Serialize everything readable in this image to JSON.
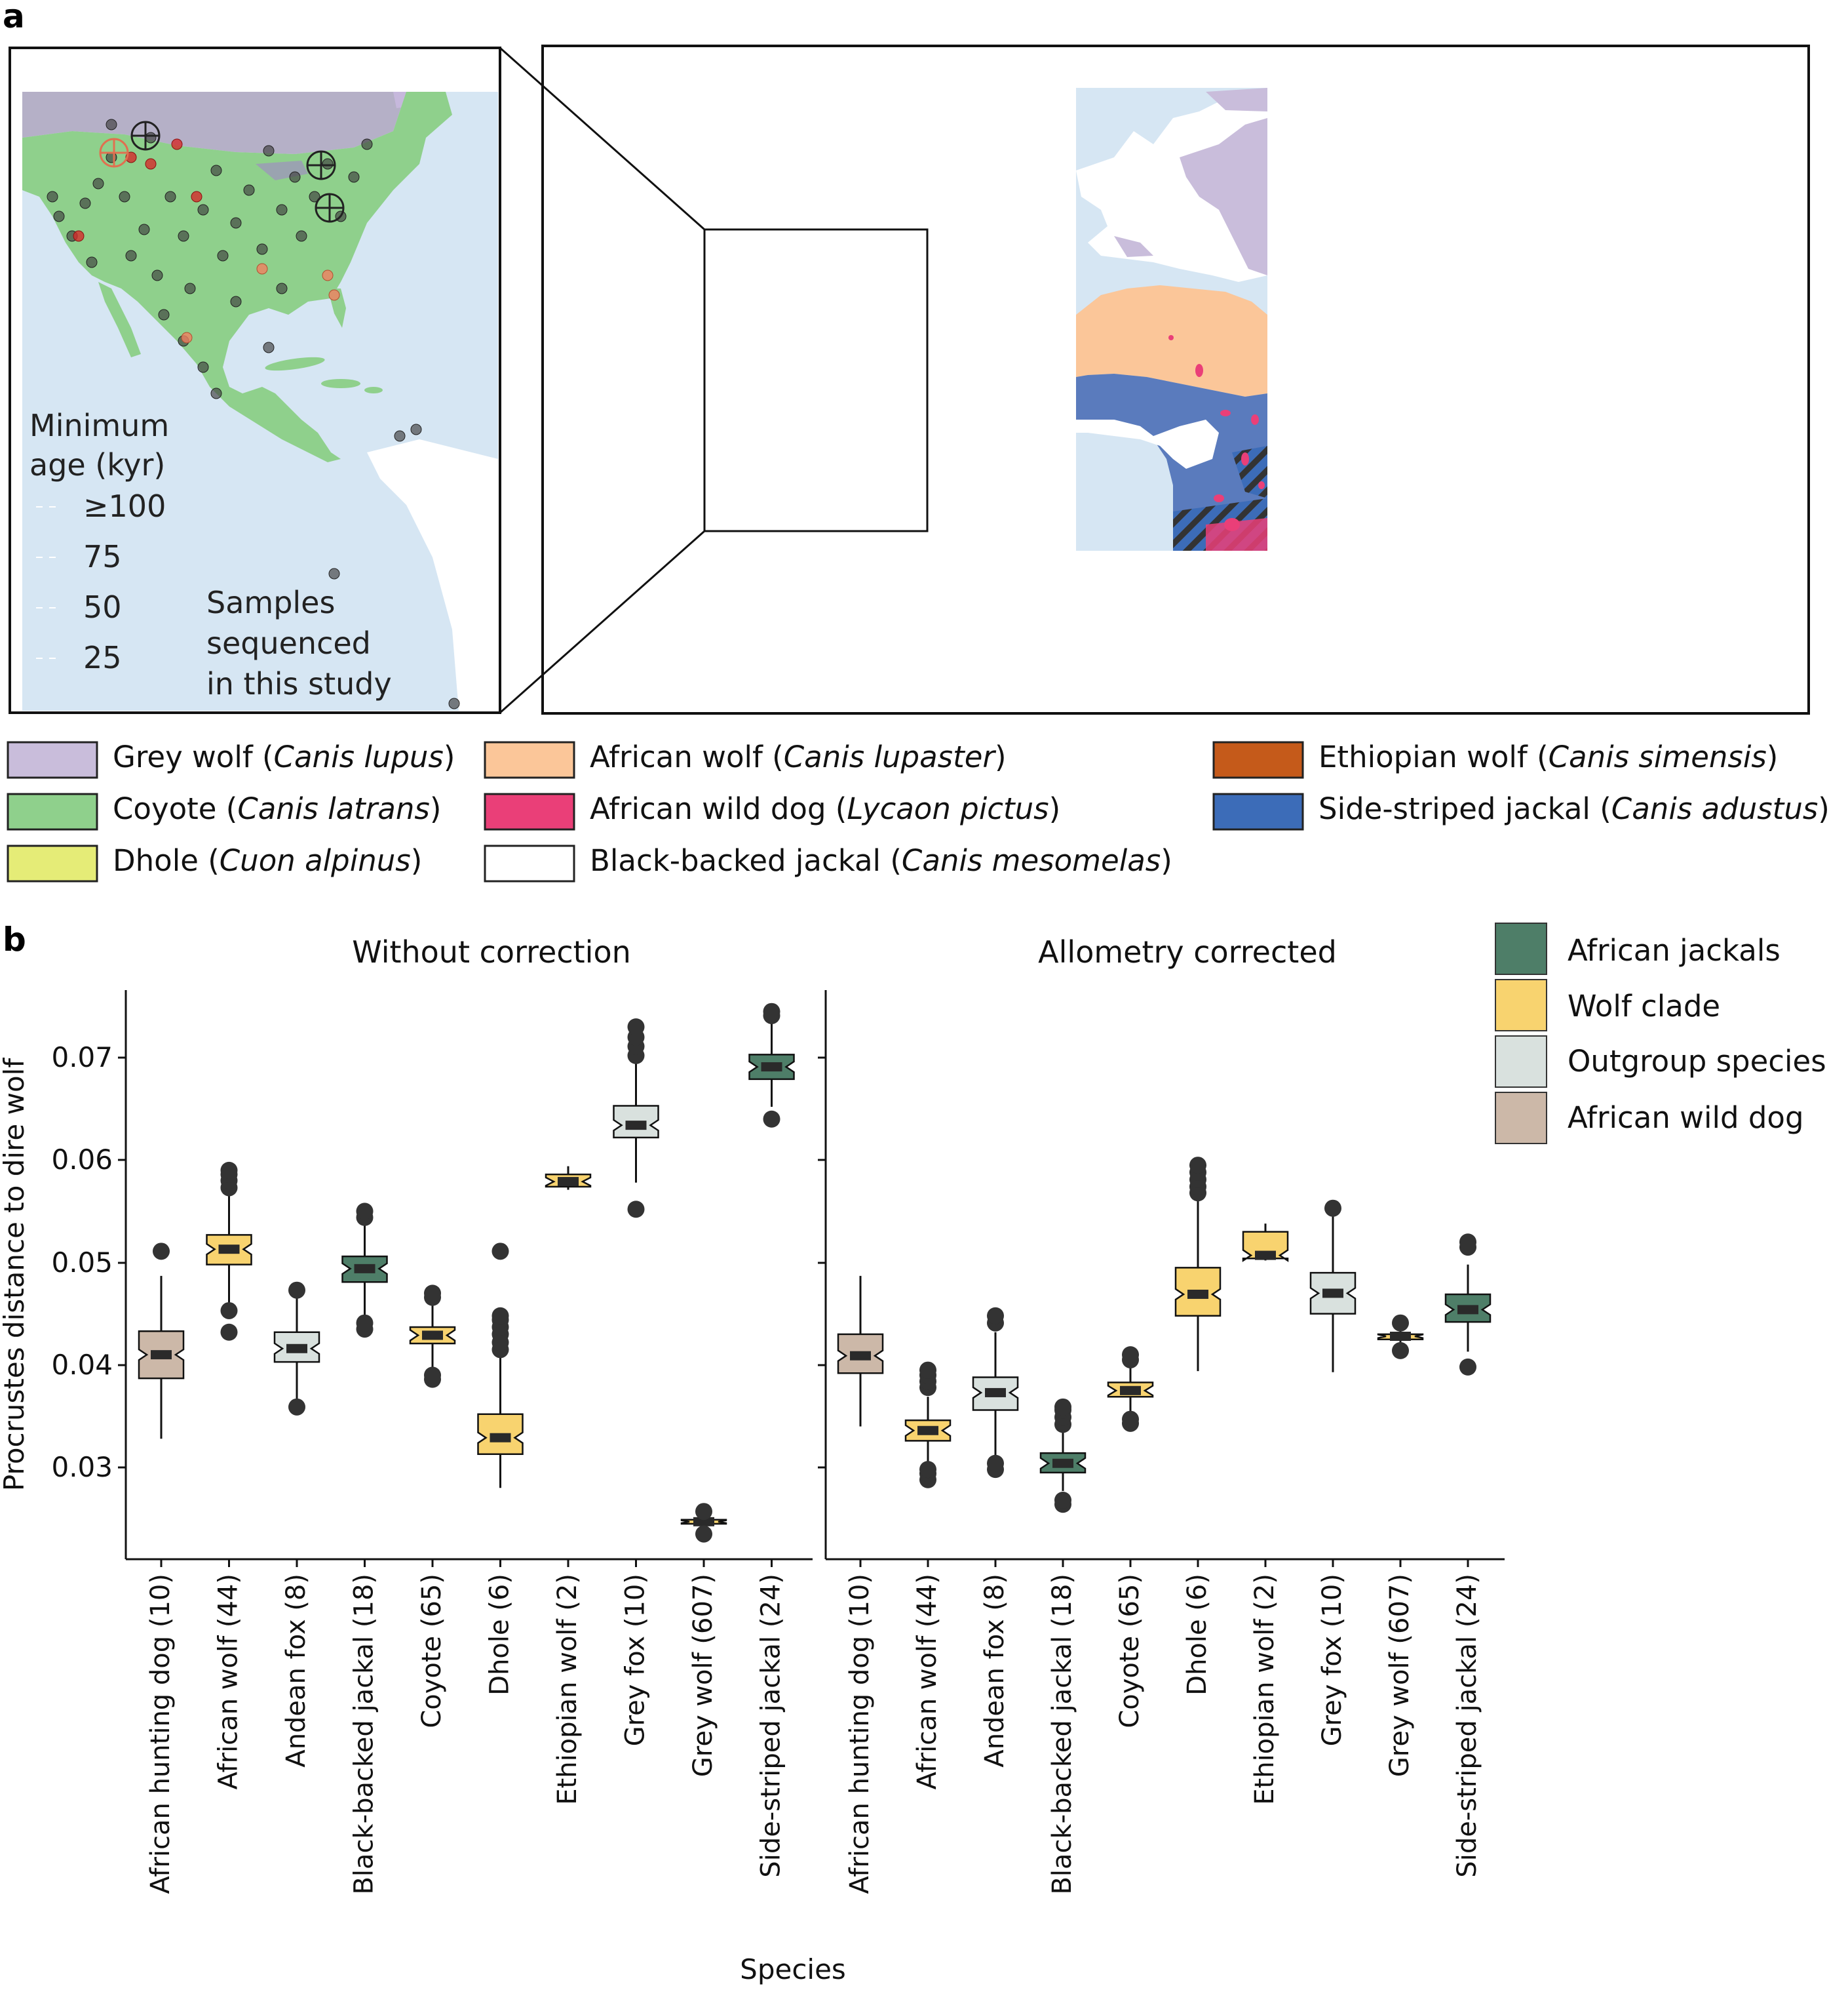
{
  "panel_a": {
    "letter": "a",
    "inset": {
      "legend_title_line1": "Minimum",
      "legend_title_line2": "age (kyr)",
      "age_ticks": [
        "≥100",
        "75",
        "50",
        "25"
      ],
      "samples_line1": "Samples",
      "samples_line2": "sequenced",
      "samples_line3": "in this study"
    },
    "species_legend": [
      {
        "common": "Grey wolf (",
        "latin": "Canis lupus",
        "close": ")",
        "color": "#c9bddb"
      },
      {
        "common": "Coyote (",
        "latin": "Canis latrans",
        "close": ")",
        "color": "#8fd08c"
      },
      {
        "common": "Dhole (",
        "latin": "Cuon alpinus",
        "close": ")",
        "color": "#e5ec77"
      },
      {
        "common": "African wolf (",
        "latin": "Canis lupaster",
        "close": ")",
        "color": "#fbc699"
      },
      {
        "common": "African wild dog (",
        "latin": "Lycaon pictus",
        "close": ")",
        "color": "#ea3f78"
      },
      {
        "common": "Black-backed jackal (",
        "latin": "Canis mesomelas",
        "close": ")",
        "color": "#ffffff"
      },
      {
        "common": "Ethiopian wolf (",
        "latin": "Canis simensis",
        "close": ")",
        "color": "#c55a1a"
      },
      {
        "common": "Side-striped jackal (",
        "latin": "Canis adustus",
        "close": ")",
        "color": "#3c6cb8"
      }
    ]
  },
  "panel_b": {
    "letter": "b",
    "ylabel": "Procrustes distance to dire wolf",
    "xlabel": "Species",
    "y_ticks": [
      "0.03",
      "0.04",
      "0.05",
      "0.06",
      "0.07"
    ],
    "facet_titles": [
      "Without correction",
      "Allometry corrected"
    ],
    "legend": [
      {
        "label": "African jackals",
        "color": "#4e7e68"
      },
      {
        "label": "Wolf clade",
        "color": "#f8d36f"
      },
      {
        "label": "Outgroup species",
        "color": "#d9e1de"
      },
      {
        "label": "African wild dog",
        "color": "#ccb8a8"
      }
    ]
  },
  "chart_data": [
    {
      "type": "box",
      "title": "Without correction",
      "xlabel": "Species",
      "ylabel": "Procrustes distance to dire wolf",
      "ylim": [
        0.0215,
        0.0775
      ],
      "categories": [
        "African hunting dog (10)",
        "African wolf (44)",
        "Andean fox (8)",
        "Black-backed jackal (18)",
        "Coyote (65)",
        "Dhole (6)",
        "Ethiopian wolf (2)",
        "Grey fox (10)",
        "Grey wolf (607)",
        "Side-striped jackal (24)"
      ],
      "groups": [
        "African wild dog",
        "Wolf clade",
        "Outgroup species",
        "African jackals",
        "Wolf clade",
        "Wolf clade",
        "Wolf clade",
        "Outgroup species",
        "Wolf clade",
        "African jackals"
      ],
      "boxes": [
        {
          "min": 0.0328,
          "q1": 0.0387,
          "median": 0.041,
          "q3": 0.0433,
          "max": 0.0487,
          "outliers": [
            0.0511
          ]
        },
        {
          "min": 0.0457,
          "q1": 0.0498,
          "median": 0.0513,
          "q3": 0.0527,
          "max": 0.0567,
          "outliers": [
            0.0432,
            0.0453,
            0.0573,
            0.058,
            0.0586,
            0.059
          ]
        },
        {
          "min": 0.0365,
          "q1": 0.0403,
          "median": 0.0416,
          "q3": 0.0432,
          "max": 0.0465,
          "outliers": [
            0.0359,
            0.0473
          ]
        },
        {
          "min": 0.0444,
          "q1": 0.0481,
          "median": 0.0494,
          "q3": 0.0506,
          "max": 0.054,
          "outliers": [
            0.0435,
            0.0441,
            0.0544,
            0.055
          ]
        },
        {
          "min": 0.0393,
          "q1": 0.0421,
          "median": 0.0429,
          "q3": 0.0437,
          "max": 0.0462,
          "outliers": [
            0.0386,
            0.039,
            0.0466,
            0.047
          ]
        },
        {
          "min": 0.028,
          "q1": 0.0313,
          "median": 0.0329,
          "q3": 0.0352,
          "max": 0.0408,
          "outliers": [
            0.0415,
            0.0422,
            0.043,
            0.0437,
            0.0444,
            0.0448,
            0.0511
          ]
        },
        {
          "min": 0.0571,
          "q1": 0.0574,
          "median": 0.0579,
          "q3": 0.0586,
          "max": 0.0594,
          "outliers": []
        },
        {
          "min": 0.0578,
          "q1": 0.0622,
          "median": 0.0634,
          "q3": 0.0653,
          "max": 0.0695,
          "outliers": [
            0.0552,
            0.0702,
            0.0711,
            0.072,
            0.073
          ]
        },
        {
          "min": 0.0239,
          "q1": 0.0245,
          "median": 0.0247,
          "q3": 0.0249,
          "max": 0.0254,
          "outliers": [
            0.0235,
            0.0257
          ]
        },
        {
          "min": 0.0652,
          "q1": 0.0679,
          "median": 0.0691,
          "q3": 0.0703,
          "max": 0.0735,
          "outliers": [
            0.064,
            0.0741,
            0.0745
          ]
        }
      ]
    },
    {
      "type": "box",
      "title": "Allometry corrected",
      "xlabel": "Species",
      "ylabel": "Procrustes distance to dire wolf",
      "ylim": [
        0.0215,
        0.0775
      ],
      "categories": [
        "African hunting dog (10)",
        "African wolf (44)",
        "Andean fox (8)",
        "Black-backed jackal (18)",
        "Coyote (65)",
        "Dhole (6)",
        "Ethiopian wolf (2)",
        "Grey fox (10)",
        "Grey wolf (607)",
        "Side-striped jackal (24)"
      ],
      "groups": [
        "African wild dog",
        "Wolf clade",
        "Outgroup species",
        "African jackals",
        "Wolf clade",
        "Wolf clade",
        "Wolf clade",
        "Outgroup species",
        "Wolf clade",
        "African jackals"
      ],
      "boxes": [
        {
          "min": 0.034,
          "q1": 0.0392,
          "median": 0.0409,
          "q3": 0.043,
          "max": 0.0487,
          "outliers": []
        },
        {
          "min": 0.0303,
          "q1": 0.0326,
          "median": 0.0336,
          "q3": 0.0346,
          "max": 0.0369,
          "outliers": [
            0.0288,
            0.0294,
            0.0298,
            0.0378,
            0.0384,
            0.039,
            0.0395
          ]
        },
        {
          "min": 0.0309,
          "q1": 0.0356,
          "median": 0.0373,
          "q3": 0.0388,
          "max": 0.0432,
          "outliers": [
            0.0298,
            0.0304,
            0.0441,
            0.0448
          ]
        },
        {
          "min": 0.0277,
          "q1": 0.0295,
          "median": 0.0304,
          "q3": 0.0314,
          "max": 0.0336,
          "outliers": [
            0.0264,
            0.0268,
            0.0342,
            0.0349,
            0.0356,
            0.0359
          ]
        },
        {
          "min": 0.0354,
          "q1": 0.0369,
          "median": 0.0375,
          "q3": 0.0383,
          "max": 0.0398,
          "outliers": [
            0.0343,
            0.0347,
            0.0405,
            0.041
          ]
        },
        {
          "min": 0.0394,
          "q1": 0.0448,
          "median": 0.0469,
          "q3": 0.0495,
          "max": 0.0563,
          "outliers": [
            0.0568,
            0.0574,
            0.0581,
            0.0588,
            0.0595
          ]
        },
        {
          "min": 0.0502,
          "q1": 0.0504,
          "median": 0.0507,
          "q3": 0.053,
          "max": 0.0538,
          "outliers": []
        },
        {
          "min": 0.0393,
          "q1": 0.045,
          "median": 0.047,
          "q3": 0.049,
          "max": 0.0545,
          "outliers": [
            0.0553
          ]
        },
        {
          "min": 0.0417,
          "q1": 0.0425,
          "median": 0.0428,
          "q3": 0.043,
          "max": 0.0438,
          "outliers": [
            0.0414,
            0.0441
          ]
        },
        {
          "min": 0.0413,
          "q1": 0.0442,
          "median": 0.0454,
          "q3": 0.0469,
          "max": 0.0498,
          "outliers": [
            0.0398,
            0.0515,
            0.052
          ]
        }
      ]
    }
  ]
}
